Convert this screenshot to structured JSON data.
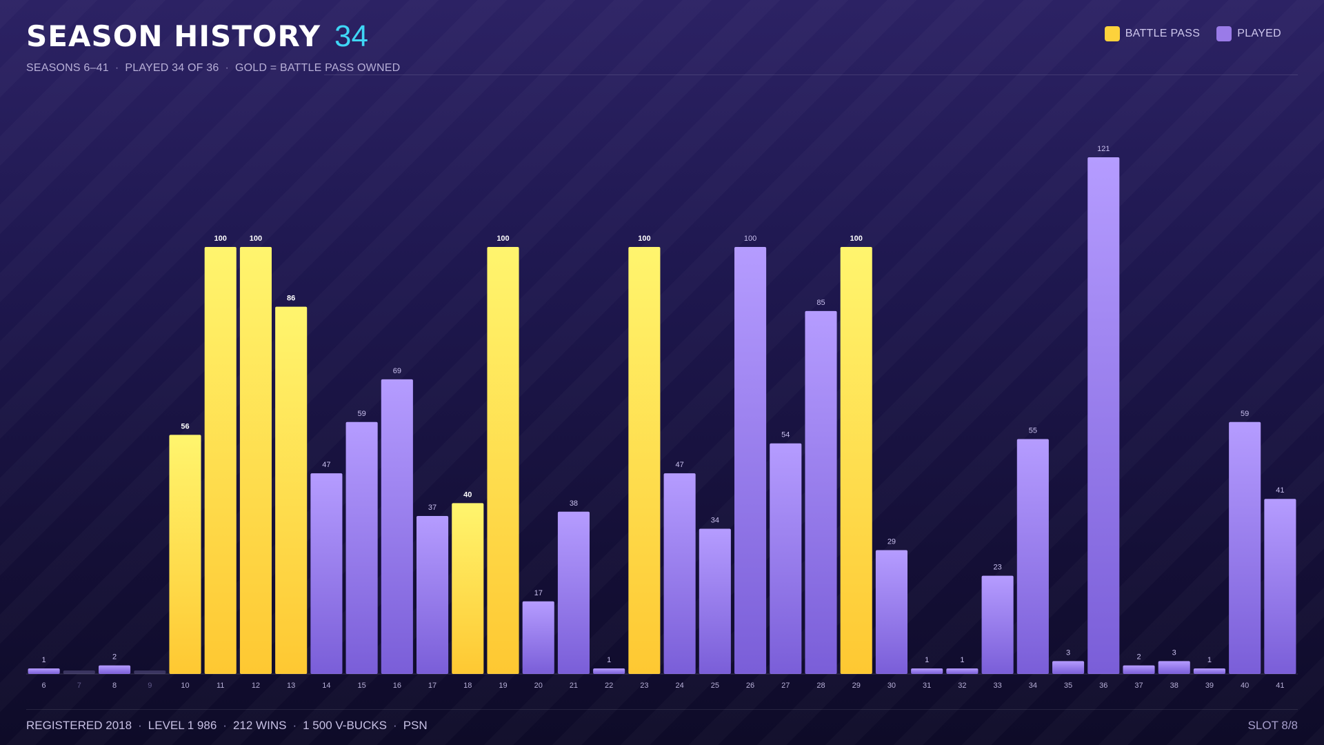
{
  "header": {
    "title": "SEASON HISTORY",
    "count": "34",
    "subtitle_parts": [
      "SEASONS 6–41",
      "PLAYED 34 OF 36",
      "GOLD = BATTLE PASS OWNED"
    ]
  },
  "legend": [
    {
      "label": "BATTLE PASS",
      "color": "#fdd23c"
    },
    {
      "label": "PLAYED",
      "color": "#9a7be8"
    }
  ],
  "footer": {
    "parts": [
      "REGISTERED 2018",
      "LEVEL 1 986",
      "212 WINS",
      "1 500 V-BUCKS",
      "PSN"
    ],
    "slot": "SLOT 8/8"
  },
  "colors": {
    "gold_top": "#fff56e",
    "gold_bottom": "#fec832",
    "purple_top": "#b59cff",
    "purple_bottom": "#7a5ed8",
    "empty": "#3a3460",
    "accent": "#3fd6f5"
  },
  "chart_data": {
    "type": "bar",
    "categories": [
      "6",
      "7",
      "8",
      "9",
      "10",
      "11",
      "12",
      "13",
      "14",
      "15",
      "16",
      "17",
      "18",
      "19",
      "20",
      "21",
      "22",
      "23",
      "24",
      "25",
      "26",
      "27",
      "28",
      "29",
      "30",
      "31",
      "32",
      "33",
      "34",
      "35",
      "36",
      "37",
      "38",
      "39",
      "40",
      "41"
    ],
    "values": [
      1,
      0,
      2,
      0,
      56,
      100,
      100,
      86,
      47,
      59,
      69,
      37,
      40,
      100,
      17,
      38,
      1,
      100,
      47,
      34,
      100,
      54,
      85,
      100,
      29,
      1,
      1,
      23,
      55,
      3,
      121,
      2,
      3,
      1,
      59,
      41
    ],
    "value_labels": [
      "1",
      "",
      "2",
      "",
      "56",
      "100",
      "100",
      "86",
      "47",
      "59",
      "69",
      "37",
      "40",
      "100",
      "17",
      "38",
      "1",
      "100",
      "47",
      "34",
      "100",
      "54",
      "85",
      "100",
      "29",
      "1",
      "1",
      "23",
      "55",
      "3",
      "121",
      "2",
      "3",
      "1",
      "59",
      "41"
    ],
    "battle_pass": [
      false,
      false,
      false,
      false,
      true,
      true,
      true,
      true,
      false,
      false,
      false,
      false,
      true,
      true,
      false,
      false,
      false,
      true,
      false,
      false,
      false,
      false,
      false,
      true,
      false,
      false,
      false,
      false,
      false,
      false,
      false,
      false,
      false,
      false,
      false,
      false
    ],
    "played": [
      true,
      false,
      true,
      false,
      true,
      true,
      true,
      true,
      true,
      true,
      true,
      true,
      true,
      true,
      true,
      true,
      true,
      true,
      true,
      true,
      true,
      true,
      true,
      true,
      true,
      true,
      true,
      true,
      true,
      true,
      true,
      true,
      true,
      true,
      true,
      true
    ],
    "ylim": [
      0,
      125
    ],
    "grid": false,
    "legend_position": "top-right"
  }
}
